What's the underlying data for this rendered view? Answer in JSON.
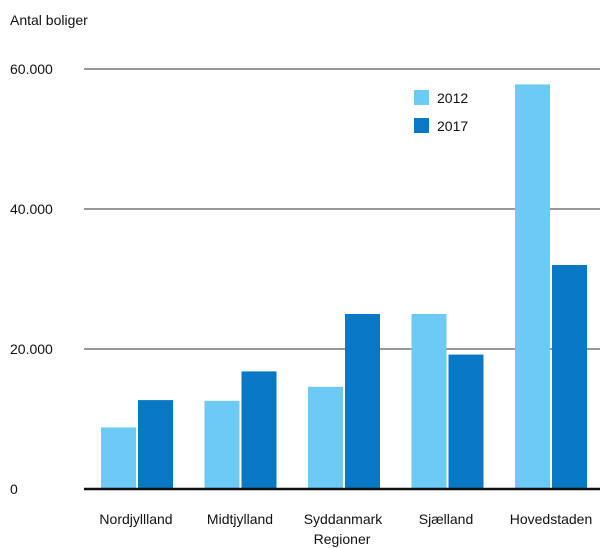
{
  "chart_data": {
    "type": "bar",
    "ylabel": "Antal boliger",
    "xlabel": "Regioner",
    "categories": [
      "Nordjyllland",
      "Midtjylland",
      "Syddanmark",
      "Sjælland",
      "Hovedstaden"
    ],
    "series": [
      {
        "name": "2012",
        "color": "#6ccaf5",
        "values": [
          8800,
          12600,
          14600,
          25000,
          57800
        ]
      },
      {
        "name": "2017",
        "color": "#0877c4",
        "values": [
          12700,
          16800,
          25000,
          19200,
          32000
        ]
      }
    ],
    "ylim": [
      0,
      60000
    ],
    "yticks": [
      0,
      20000,
      40000,
      60000
    ],
    "ytick_labels": [
      "0",
      "20.000",
      "40.000",
      "60.000"
    ],
    "grid": true,
    "legend_position": "top-right"
  }
}
